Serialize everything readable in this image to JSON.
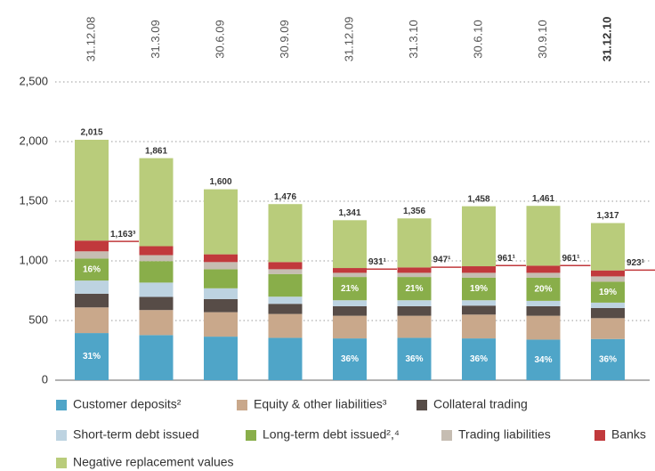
{
  "chart_data": {
    "type": "stacked_bar",
    "categories": [
      "31.12.08",
      "31.3.09",
      "30.6.09",
      "30.9.09",
      "31.12.09",
      "31.3.10",
      "30.6.10",
      "30.9.10",
      "31.12.10"
    ],
    "series": [
      {
        "name": "Customer deposits²",
        "color": "#4fa5c8",
        "values": [
          395,
          378,
          365,
          355,
          350,
          355,
          350,
          340,
          345
        ],
        "share_labels": [
          "31%",
          null,
          null,
          null,
          "36%",
          "36%",
          "36%",
          "34%",
          "36%"
        ]
      },
      {
        "name": "Equity & other liabilities³",
        "color": "#c9a88b",
        "values": [
          215,
          210,
          205,
          200,
          190,
          185,
          200,
          200,
          175
        ]
      },
      {
        "name": "Collateral trading",
        "color": "#574c47",
        "values": [
          115,
          110,
          110,
          85,
          80,
          80,
          75,
          80,
          85
        ]
      },
      {
        "name": "Short-term debt issued",
        "color": "#bdd3e1",
        "values": [
          110,
          120,
          90,
          60,
          50,
          50,
          45,
          45,
          45
        ]
      },
      {
        "name": "Long-term debt issued²,⁴",
        "color": "#89ae4a",
        "values": [
          185,
          180,
          160,
          190,
          195,
          195,
          190,
          195,
          175
        ],
        "share_labels": [
          "16%",
          null,
          null,
          null,
          "21%",
          "21%",
          "19%",
          "20%",
          "19%"
        ]
      },
      {
        "name": "Trading liabilities",
        "color": "#c6bdb2",
        "values": [
          60,
          50,
          60,
          40,
          35,
          35,
          40,
          40,
          45
        ]
      },
      {
        "name": "Banks",
        "color": "#c1393c",
        "values": [
          90,
          75,
          65,
          60,
          40,
          45,
          55,
          60,
          50
        ]
      },
      {
        "name": "Negative replacement values",
        "color": "#b9cc7b",
        "values": [
          845,
          738,
          545,
          486,
          401,
          411,
          503,
          501,
          397
        ]
      }
    ],
    "total_labels": [
      "2,015",
      "1,861",
      "1,600",
      "1,476",
      "1,341",
      "1,356",
      "1,458",
      "1,461",
      "1,317"
    ],
    "reference_lines": [
      {
        "category": "31.12.08",
        "value": 1163,
        "label": "1,163³"
      },
      {
        "category": "31.12.09",
        "value": 931,
        "label": "931¹"
      },
      {
        "category": "31.3.10",
        "value": 947,
        "label": "947¹"
      },
      {
        "category": "30.6.10",
        "value": 961,
        "label": "961¹"
      },
      {
        "category": "30.9.10",
        "value": 961,
        "label": "961¹"
      },
      {
        "category": "31.12.10",
        "value": 923,
        "label": "923¹"
      }
    ],
    "reference_color": "#c1393c",
    "ylim": [
      0,
      2500
    ],
    "yticks": [
      0,
      {
        "value": 500,
        "label": "500"
      },
      {
        "value": 1000,
        "label": "1,000"
      },
      {
        "value": 1500,
        "label": "1,500"
      },
      {
        "value": 2000,
        "label": "2,000"
      },
      {
        "value": 2500,
        "label": "2,500"
      }
    ],
    "grid": true
  }
}
